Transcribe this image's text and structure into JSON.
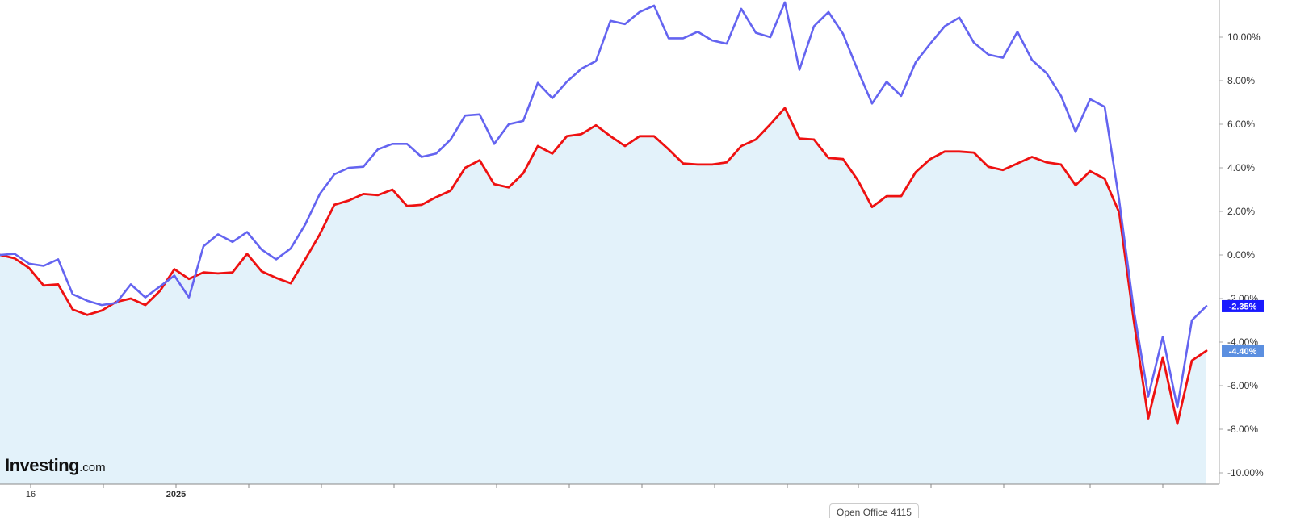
{
  "chart_data": {
    "type": "line",
    "y_axis": {
      "position": "right",
      "range": [
        -10.5,
        11.8
      ],
      "ticks": [
        10,
        8,
        6,
        4,
        2,
        0,
        -2,
        -4,
        -6,
        -8,
        -10
      ],
      "tick_labels": [
        "10.00%",
        "8.00%",
        "6.00%",
        "4.00%",
        "2.00%",
        "0.00%",
        "-2.00%",
        "-4.00%",
        "-6.00%",
        "-8.00%",
        "-10.00%"
      ]
    },
    "x_axis": {
      "tick_labels": [
        "16",
        "2025"
      ]
    },
    "grid": false,
    "series": [
      {
        "color": "#6464f0",
        "last_value_label": "-2.35%",
        "last_label_color": "#1a1aff",
        "values": [
          0.0,
          0.05,
          -0.4,
          -0.5,
          -0.2,
          -1.8,
          -2.1,
          -2.3,
          -2.2,
          -1.35,
          -1.95,
          -1.45,
          -0.95,
          -1.95,
          0.4,
          0.95,
          0.6,
          1.05,
          0.25,
          -0.2,
          0.3,
          1.4,
          2.8,
          3.7,
          4.0,
          4.05,
          4.85,
          5.1,
          5.1,
          4.5,
          4.65,
          5.3,
          6.4,
          6.45,
          5.1,
          6.0,
          6.15,
          7.9,
          7.2,
          7.95,
          8.55,
          8.9,
          10.75,
          10.6,
          11.15,
          11.45,
          9.95,
          9.95,
          10.25,
          9.85,
          9.7,
          11.3,
          10.2,
          10.0,
          11.6,
          8.5,
          10.5,
          11.15,
          10.15,
          8.5,
          6.95,
          7.95,
          7.3,
          8.85,
          9.7,
          10.5,
          10.9,
          9.75,
          9.2,
          9.05,
          10.25,
          8.95,
          8.35,
          7.3,
          5.65,
          7.15,
          6.8,
          2.5,
          -2.5,
          -6.5,
          -3.75,
          -7.0,
          -3.0,
          -2.35
        ]
      },
      {
        "color": "#ee1111",
        "fill_color": "#e3f2fa",
        "last_value_label": "-4.40%",
        "last_label_color": "#5b8fe0",
        "values": [
          0.0,
          -0.15,
          -0.6,
          -1.4,
          -1.35,
          -2.5,
          -2.75,
          -2.55,
          -2.15,
          -2.0,
          -2.3,
          -1.65,
          -0.65,
          -1.1,
          -0.8,
          -0.85,
          -0.8,
          0.05,
          -0.75,
          -1.05,
          -1.3,
          -0.2,
          0.95,
          2.3,
          2.5,
          2.8,
          2.75,
          3.0,
          2.25,
          2.3,
          2.65,
          2.95,
          4.0,
          4.35,
          3.25,
          3.1,
          3.75,
          5.0,
          4.65,
          5.45,
          5.55,
          5.95,
          5.45,
          5.0,
          5.45,
          5.45,
          4.85,
          4.2,
          4.15,
          4.15,
          4.25,
          5.0,
          5.3,
          6.0,
          6.75,
          5.35,
          5.3,
          4.45,
          4.4,
          3.45,
          2.2,
          2.7,
          2.7,
          3.8,
          4.4,
          4.75,
          4.75,
          4.7,
          4.05,
          3.9,
          4.2,
          4.5,
          4.25,
          4.15,
          3.2,
          3.85,
          3.5,
          1.95,
          -3.0,
          -7.5,
          -4.7,
          -7.75,
          -4.85,
          -4.4
        ]
      }
    ]
  },
  "branding": {
    "logo_brand": "Investing",
    "logo_tld": ".com"
  },
  "tooltip": {
    "text": "Open Office 4115"
  }
}
